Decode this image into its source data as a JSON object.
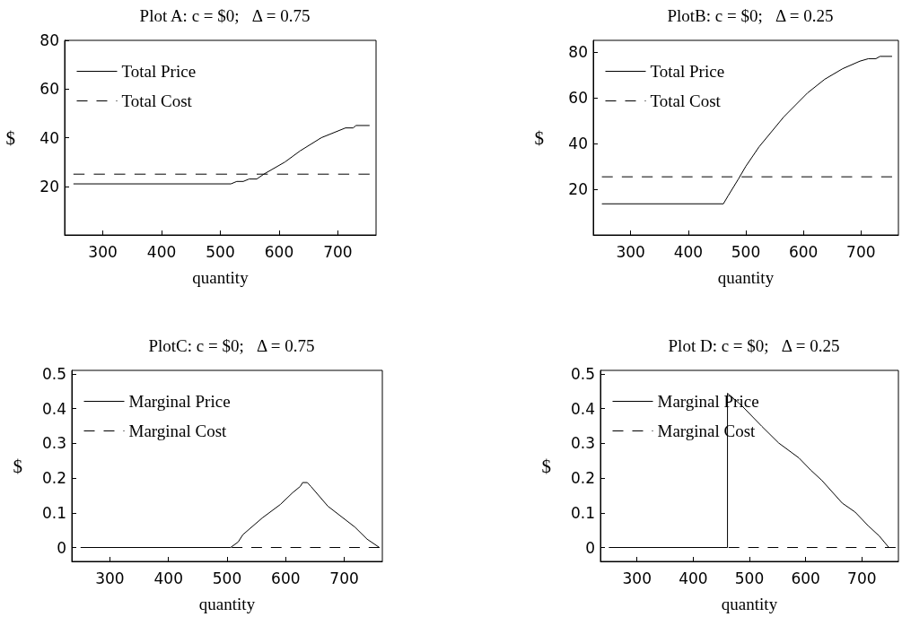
{
  "chart_data": [
    {
      "type": "line",
      "title": "Plot A: c = $0;   Δ = 0.75",
      "xlabel": "quantity",
      "ylabel": "$",
      "xlim": [
        235,
        765
      ],
      "xticks": [
        300,
        400,
        500,
        600,
        700
      ],
      "ylim": [
        0,
        80
      ],
      "yticks": [
        20,
        40,
        60,
        80
      ],
      "legend": "top left",
      "grid": false,
      "marker": "none",
      "series": [
        {
          "name": "Total Price",
          "color": "#000000",
          "line_style": "solid",
          "x": [
            250,
            518,
            528,
            539,
            549,
            562,
            574,
            610,
            636,
            672,
            713,
            726,
            731,
            754
          ],
          "values": [
            21,
            21,
            22,
            22,
            23,
            23,
            25,
            30,
            34.6,
            40,
            44,
            44,
            45,
            45
          ]
        },
        {
          "name": "Total Cost",
          "color": "#000000",
          "line_style": "dashed",
          "x": [
            250,
            754
          ],
          "values": [
            25,
            25
          ]
        }
      ]
    },
    {
      "type": "line",
      "title": "PlotB: c = $0;   Δ = 0.25",
      "xlabel": "quantity",
      "ylabel": "$",
      "xlim": [
        235,
        765
      ],
      "xticks": [
        300,
        400,
        500,
        600,
        700
      ],
      "ylim": [
        0,
        85
      ],
      "yticks": [
        20,
        40,
        60,
        80
      ],
      "legend": "top left",
      "grid": false,
      "marker": "none",
      "series": [
        {
          "name": "Total Price",
          "color": "#000000",
          "line_style": "solid",
          "x": [
            250,
            461,
            469,
            487,
            500,
            523,
            566,
            607,
            637,
            668,
            698,
            713,
            726,
            733,
            754
          ],
          "values": [
            13.6,
            13.6,
            17,
            24.4,
            30,
            38.5,
            51.6,
            62,
            68,
            72.6,
            75.9,
            77,
            77,
            78,
            78
          ]
        },
        {
          "name": "Total Cost",
          "color": "#000000",
          "line_style": "dashed",
          "x": [
            250,
            754
          ],
          "values": [
            25.4,
            25.4
          ]
        }
      ]
    },
    {
      "type": "line",
      "title": "PlotC: c = $0;   Δ = 0.75",
      "xlabel": "quantity",
      "ylabel": "$",
      "xlim": [
        235,
        765
      ],
      "xticks": [
        300,
        400,
        500,
        600,
        700
      ],
      "ylim": [
        -0.04,
        0.51
      ],
      "yticks": [
        0,
        0.1,
        0.2,
        0.3,
        0.4,
        0.5
      ],
      "legend": "top left",
      "grid": false,
      "marker": "none",
      "series": [
        {
          "name": "Marginal Price",
          "color": "#000000",
          "line_style": "solid",
          "x": [
            250,
            506,
            519,
            527,
            560,
            591,
            612,
            625,
            629,
            637,
            643,
            672,
            718,
            739,
            760
          ],
          "values": [
            0,
            0,
            0.016,
            0.037,
            0.085,
            0.124,
            0.158,
            0.176,
            0.187,
            0.187,
            0.176,
            0.119,
            0.059,
            0.024,
            0
          ]
        },
        {
          "name": "Marginal Cost",
          "color": "#000000",
          "line_style": "dashed",
          "x": [
            508,
            760
          ],
          "values": [
            0,
            0
          ]
        }
      ]
    },
    {
      "type": "line",
      "title": "Plot D: c = $0;   Δ = 0.25",
      "xlabel": "quantity",
      "ylabel": "$",
      "xlim": [
        235,
        765
      ],
      "xticks": [
        300,
        400,
        500,
        600,
        700
      ],
      "ylim": [
        -0.04,
        0.51
      ],
      "yticks": [
        0,
        0.1,
        0.2,
        0.3,
        0.4,
        0.5
      ],
      "legend": "top left",
      "grid": false,
      "marker": "none",
      "series": [
        {
          "name": "Marginal Price",
          "color": "#000000",
          "line_style": "solid",
          "x": [
            250,
            461,
            461,
            486,
            522,
            552,
            588,
            609,
            629,
            665,
            688,
            711,
            731,
            748
          ],
          "values": [
            0,
            0,
            0.444,
            0.409,
            0.349,
            0.301,
            0.258,
            0.223,
            0.193,
            0.128,
            0.102,
            0.063,
            0.033,
            0
          ]
        },
        {
          "name": "Marginal Cost",
          "color": "#000000",
          "line_style": "dashed",
          "x": [
            463,
            760
          ],
          "values": [
            0,
            0
          ]
        }
      ]
    }
  ]
}
